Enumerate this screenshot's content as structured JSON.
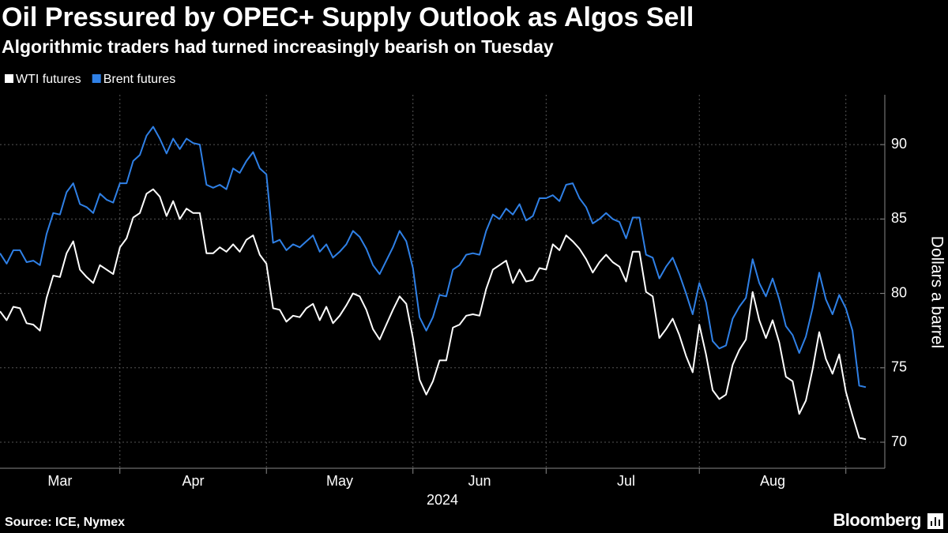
{
  "chart_data": {
    "type": "line",
    "title": "Oil Pressured by OPEC+ Supply Outlook as Algos Sell",
    "subtitle": "Algorithmic traders had turned increasingly bearish on Tuesday",
    "ylabel": "Dollars a barrel",
    "xlabel": "2024",
    "source": "Source: ICE, Nymex",
    "brand": "Bloomberg",
    "categories": [
      null,
      null,
      null,
      null,
      null,
      null,
      null,
      null,
      null,
      "Mar",
      null,
      null,
      null,
      null,
      null,
      null,
      null,
      null,
      null,
      null,
      null,
      null,
      null,
      null,
      null,
      null,
      null,
      null,
      null,
      "Apr",
      null,
      null,
      null,
      null,
      null,
      null,
      null,
      null,
      null,
      null,
      null,
      null,
      null,
      null,
      null,
      null,
      null,
      null,
      null,
      null,
      null,
      "May",
      null,
      null,
      null,
      null,
      null,
      null,
      null,
      null,
      null,
      null,
      null,
      null,
      null,
      null,
      null,
      null,
      null,
      null,
      null,
      null,
      "Jun",
      null,
      null,
      null,
      null,
      null,
      null,
      null,
      null,
      null,
      null,
      null,
      null,
      null,
      null,
      null,
      null,
      null,
      null,
      null,
      null,
      null,
      "Jul",
      null,
      null,
      null,
      null,
      null,
      null,
      null,
      null,
      null,
      null,
      null,
      null,
      null,
      null,
      null,
      null,
      null,
      null,
      null,
      null,
      null,
      "Aug",
      null,
      null,
      null,
      null,
      null,
      null,
      null,
      null,
      null,
      null,
      null,
      null,
      null,
      null
    ],
    "xticks": [
      18,
      40,
      62,
      82,
      105,
      127
    ],
    "series": [
      {
        "name": "WTI futures",
        "color": "#ffffff",
        "values": [
          78.8,
          78.2,
          79.1,
          79.0,
          78.0,
          77.9,
          77.5,
          79.7,
          81.2,
          81.1,
          82.7,
          83.5,
          81.6,
          81.1,
          80.7,
          81.9,
          81.6,
          81.3,
          83.1,
          83.7,
          85.1,
          85.4,
          86.7,
          87.0,
          86.5,
          85.2,
          86.2,
          85.0,
          85.7,
          85.4,
          85.4,
          82.7,
          82.7,
          83.1,
          82.8,
          83.3,
          82.8,
          83.6,
          83.9,
          82.6,
          82.0,
          79.0,
          78.9,
          78.1,
          78.5,
          78.4,
          79.0,
          79.3,
          78.2,
          79.1,
          78.0,
          78.5,
          79.2,
          80.0,
          79.8,
          78.9,
          77.6,
          76.9,
          77.9,
          78.9,
          79.8,
          79.3,
          77.0,
          74.2,
          73.2,
          74.1,
          75.5,
          75.5,
          77.7,
          77.9,
          78.5,
          78.6,
          78.5,
          80.3,
          81.6,
          81.9,
          82.2,
          80.7,
          81.6,
          80.8,
          80.9,
          81.7,
          81.6,
          83.3,
          82.9,
          83.9,
          83.5,
          83.0,
          82.3,
          81.4,
          82.1,
          82.6,
          82.1,
          81.8,
          80.8,
          82.8,
          82.8,
          80.1,
          79.8,
          77.0,
          77.6,
          78.3,
          77.2,
          75.8,
          74.7,
          77.9,
          75.9,
          73.5,
          72.9,
          73.2,
          75.2,
          76.2,
          76.9,
          80.1,
          78.2,
          77.0,
          78.2,
          76.7,
          74.4,
          74.1,
          71.9,
          72.8,
          74.9,
          77.4,
          75.6,
          74.6,
          75.9,
          73.4,
          71.8,
          70.3,
          70.2
        ]
      },
      {
        "name": "Brent futures",
        "color": "#2f80e6",
        "values": [
          82.7,
          82.0,
          82.9,
          82.9,
          82.1,
          82.2,
          81.9,
          84.0,
          85.4,
          85.3,
          86.8,
          87.4,
          86.0,
          85.8,
          85.4,
          86.7,
          86.3,
          86.1,
          87.4,
          87.4,
          88.9,
          89.3,
          90.6,
          91.2,
          90.4,
          89.4,
          90.4,
          89.7,
          90.4,
          90.1,
          90.0,
          87.3,
          87.1,
          87.3,
          87.0,
          88.4,
          88.1,
          88.9,
          89.5,
          88.4,
          88.0,
          83.4,
          83.6,
          82.9,
          83.3,
          83.1,
          83.5,
          83.9,
          82.8,
          83.3,
          82.4,
          82.8,
          83.3,
          84.2,
          83.8,
          83.0,
          81.9,
          81.3,
          82.2,
          83.1,
          84.2,
          83.5,
          81.7,
          78.4,
          77.5,
          78.4,
          79.9,
          79.8,
          81.6,
          81.9,
          82.6,
          82.7,
          82.6,
          84.2,
          85.3,
          85.0,
          85.7,
          85.3,
          86.0,
          84.9,
          85.2,
          86.4,
          86.4,
          86.6,
          86.2,
          87.3,
          87.4,
          86.4,
          85.8,
          84.7,
          85.0,
          85.4,
          85.0,
          84.8,
          83.7,
          85.1,
          85.1,
          82.6,
          82.4,
          81.0,
          81.8,
          82.4,
          81.3,
          80.0,
          78.6,
          80.7,
          79.4,
          76.8,
          76.3,
          76.5,
          78.3,
          79.1,
          79.7,
          82.3,
          80.7,
          79.8,
          81.0,
          79.6,
          77.8,
          77.2,
          76.0,
          77.1,
          79.0,
          81.4,
          79.6,
          78.6,
          79.9,
          79.0,
          77.5,
          73.8,
          73.7
        ]
      }
    ],
    "ylim": [
      68.25,
      93.35
    ],
    "yticks": [
      70,
      75,
      80,
      85,
      90
    ],
    "grid": true,
    "legend": "top-left"
  }
}
